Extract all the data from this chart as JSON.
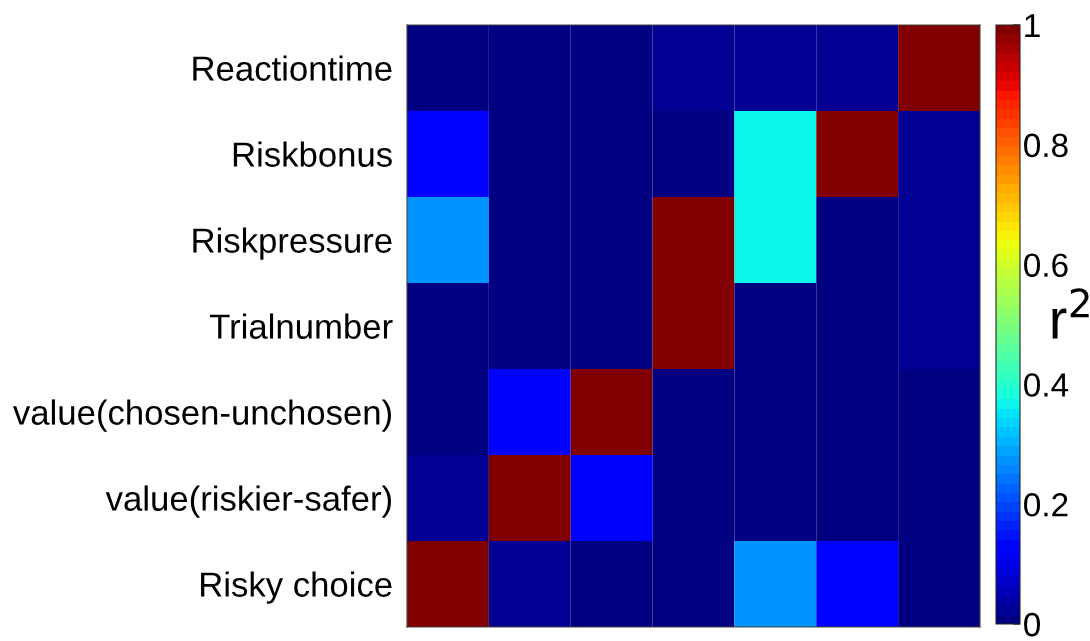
{
  "chart_data": {
    "type": "heatmap",
    "categories": [
      null,
      null,
      null,
      null,
      null,
      null,
      null
    ],
    "y_categories": [
      "Reactiontime",
      "Riskbonus",
      "Riskpressure",
      "Trialnumber",
      "value(chosen-unchosen)",
      "value(riskier-safer)",
      "Risky choice"
    ],
    "cells": [
      [
        0,
        0,
        0,
        0.02,
        0.02,
        0.02,
        1
      ],
      [
        0.14,
        0,
        0,
        0,
        0.37,
        1,
        0.02
      ],
      [
        0.27,
        0,
        0,
        1,
        0.37,
        0,
        0.02
      ],
      [
        0,
        0,
        0,
        1,
        0,
        0,
        0.02
      ],
      [
        0,
        0.12,
        1,
        0,
        0,
        0,
        0
      ],
      [
        0.03,
        1,
        0.12,
        0,
        0,
        0,
        0
      ],
      [
        1,
        0.03,
        0,
        0,
        0.27,
        0.14,
        0
      ]
    ],
    "clim": [
      0,
      1
    ],
    "cticks": [
      0,
      0.2,
      0.4,
      0.6,
      0.8,
      1
    ],
    "clabel": "r$^{2}$"
  }
}
